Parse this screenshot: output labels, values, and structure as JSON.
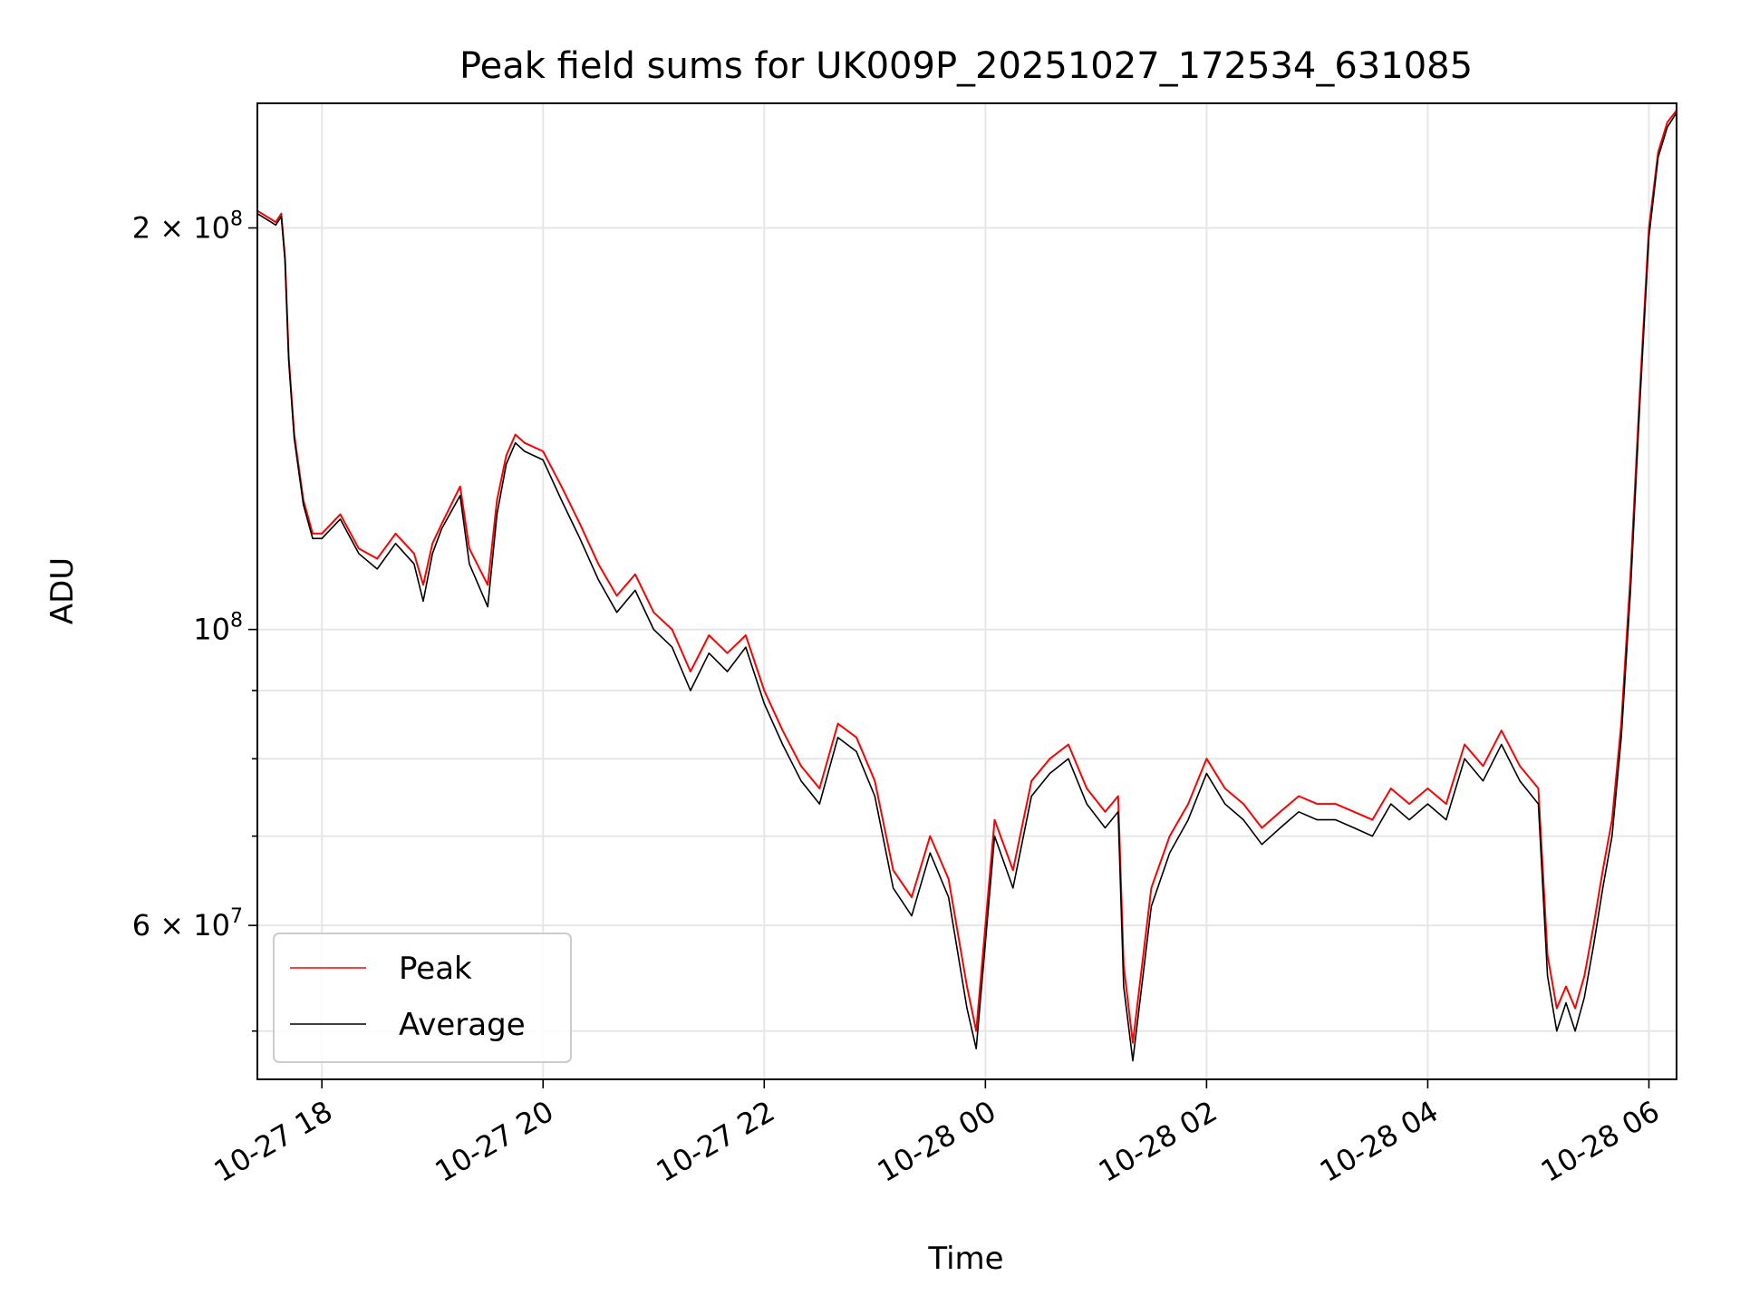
{
  "chart_data": {
    "type": "line",
    "title": "Peak field sums for UK009P_20251027_172534_631085",
    "xlabel": "Time",
    "ylabel": "ADU",
    "y_scale": "log",
    "grid": true,
    "legend_position": "lower-left",
    "xlim": [
      "2025-10-27 17:25",
      "2025-10-28 06:15"
    ],
    "ylim": [
      46000000,
      248000000
    ],
    "x_ticks": [
      {
        "value": "2025-10-27 18:00",
        "label": "10-27 18"
      },
      {
        "value": "2025-10-27 20:00",
        "label": "10-27 20"
      },
      {
        "value": "2025-10-27 22:00",
        "label": "10-27 22"
      },
      {
        "value": "2025-10-28 00:00",
        "label": "10-28 00"
      },
      {
        "value": "2025-10-28 02:00",
        "label": "10-28 02"
      },
      {
        "value": "2025-10-28 04:00",
        "label": "10-28 04"
      },
      {
        "value": "2025-10-28 06:00",
        "label": "10-28 06"
      }
    ],
    "y_ticks": [
      {
        "value": 200000000,
        "base": "2 × 10",
        "exp": "8"
      },
      {
        "value": 100000000,
        "base": "10",
        "exp": "8"
      },
      {
        "value": 60000000,
        "base": "6 × 10",
        "exp": "7"
      }
    ],
    "y_minor_ticks": [
      50000000,
      70000000,
      80000000,
      90000000
    ],
    "series": [
      {
        "name": "Peak",
        "color": "#ff0000",
        "x": [
          "2025-10-27 17:25",
          "2025-10-27 17:35",
          "2025-10-27 17:38",
          "2025-10-27 17:40",
          "2025-10-27 17:42",
          "2025-10-27 17:45",
          "2025-10-27 17:50",
          "2025-10-27 17:55",
          "2025-10-27 18:00",
          "2025-10-27 18:10",
          "2025-10-27 18:20",
          "2025-10-27 18:30",
          "2025-10-27 18:40",
          "2025-10-27 18:50",
          "2025-10-27 18:55",
          "2025-10-27 19:00",
          "2025-10-27 19:05",
          "2025-10-27 19:15",
          "2025-10-27 19:20",
          "2025-10-27 19:30",
          "2025-10-27 19:35",
          "2025-10-27 19:40",
          "2025-10-27 19:45",
          "2025-10-27 19:50",
          "2025-10-27 20:00",
          "2025-10-27 20:10",
          "2025-10-27 20:20",
          "2025-10-27 20:30",
          "2025-10-27 20:40",
          "2025-10-27 20:50",
          "2025-10-27 21:00",
          "2025-10-27 21:10",
          "2025-10-27 21:20",
          "2025-10-27 21:30",
          "2025-10-27 21:40",
          "2025-10-27 21:50",
          "2025-10-27 22:00",
          "2025-10-27 22:10",
          "2025-10-27 22:20",
          "2025-10-27 22:30",
          "2025-10-27 22:40",
          "2025-10-27 22:50",
          "2025-10-27 23:00",
          "2025-10-27 23:10",
          "2025-10-27 23:20",
          "2025-10-27 23:30",
          "2025-10-27 23:40",
          "2025-10-27 23:50",
          "2025-10-27 23:55",
          "2025-10-28 00:05",
          "2025-10-28 00:15",
          "2025-10-28 00:25",
          "2025-10-28 00:35",
          "2025-10-28 00:45",
          "2025-10-28 00:55",
          "2025-10-28 01:05",
          "2025-10-28 01:12",
          "2025-10-28 01:15",
          "2025-10-28 01:20",
          "2025-10-28 01:30",
          "2025-10-28 01:40",
          "2025-10-28 01:50",
          "2025-10-28 02:00",
          "2025-10-28 02:10",
          "2025-10-28 02:20",
          "2025-10-28 02:30",
          "2025-10-28 02:40",
          "2025-10-28 02:50",
          "2025-10-28 03:00",
          "2025-10-28 03:10",
          "2025-10-28 03:20",
          "2025-10-28 03:30",
          "2025-10-28 03:40",
          "2025-10-28 03:50",
          "2025-10-28 04:00",
          "2025-10-28 04:10",
          "2025-10-28 04:20",
          "2025-10-28 04:30",
          "2025-10-28 04:40",
          "2025-10-28 04:50",
          "2025-10-28 05:00",
          "2025-10-28 05:05",
          "2025-10-28 05:10",
          "2025-10-28 05:15",
          "2025-10-28 05:20",
          "2025-10-28 05:25",
          "2025-10-28 05:30",
          "2025-10-28 05:35",
          "2025-10-28 05:40",
          "2025-10-28 05:45",
          "2025-10-28 05:50",
          "2025-10-28 05:55",
          "2025-10-28 06:00",
          "2025-10-28 06:05",
          "2025-10-28 06:10",
          "2025-10-28 06:15"
        ],
        "values": [
          206000000,
          202000000,
          205000000,
          190000000,
          160000000,
          140000000,
          125000000,
          118000000,
          118000000,
          122000000,
          115000000,
          113000000,
          118000000,
          114000000,
          108000000,
          116000000,
          120000000,
          128000000,
          115000000,
          108000000,
          125000000,
          135000000,
          140000000,
          138000000,
          136000000,
          128000000,
          120000000,
          112000000,
          106000000,
          110000000,
          103000000,
          100000000,
          93000000,
          99000000,
          96000000,
          99000000,
          90000000,
          84000000,
          79000000,
          76000000,
          85000000,
          83000000,
          77000000,
          66000000,
          63000000,
          70000000,
          65000000,
          54000000,
          50000000,
          72000000,
          66000000,
          77000000,
          80000000,
          82000000,
          76000000,
          73000000,
          75000000,
          56000000,
          49000000,
          64000000,
          70000000,
          74000000,
          80000000,
          76000000,
          74000000,
          71000000,
          73000000,
          75000000,
          74000000,
          74000000,
          73000000,
          72000000,
          76000000,
          74000000,
          76000000,
          74000000,
          82000000,
          79000000,
          84000000,
          79000000,
          76000000,
          57000000,
          52000000,
          54000000,
          52000000,
          55000000,
          60000000,
          66000000,
          72000000,
          85000000,
          110000000,
          150000000,
          200000000,
          228000000,
          240000000,
          245000000
        ]
      },
      {
        "name": "Average",
        "color": "#000000",
        "x": [
          "2025-10-27 17:25",
          "2025-10-27 17:35",
          "2025-10-27 17:38",
          "2025-10-27 17:40",
          "2025-10-27 17:42",
          "2025-10-27 17:45",
          "2025-10-27 17:50",
          "2025-10-27 17:55",
          "2025-10-27 18:00",
          "2025-10-27 18:10",
          "2025-10-27 18:20",
          "2025-10-27 18:30",
          "2025-10-27 18:40",
          "2025-10-27 18:50",
          "2025-10-27 18:55",
          "2025-10-27 19:00",
          "2025-10-27 19:05",
          "2025-10-27 19:15",
          "2025-10-27 19:20",
          "2025-10-27 19:30",
          "2025-10-27 19:35",
          "2025-10-27 19:40",
          "2025-10-27 19:45",
          "2025-10-27 19:50",
          "2025-10-27 20:00",
          "2025-10-27 20:10",
          "2025-10-27 20:20",
          "2025-10-27 20:30",
          "2025-10-27 20:40",
          "2025-10-27 20:50",
          "2025-10-27 21:00",
          "2025-10-27 21:10",
          "2025-10-27 21:20",
          "2025-10-27 21:30",
          "2025-10-27 21:40",
          "2025-10-27 21:50",
          "2025-10-27 22:00",
          "2025-10-27 22:10",
          "2025-10-27 22:20",
          "2025-10-27 22:30",
          "2025-10-27 22:40",
          "2025-10-27 22:50",
          "2025-10-27 23:00",
          "2025-10-27 23:10",
          "2025-10-27 23:20",
          "2025-10-27 23:30",
          "2025-10-27 23:40",
          "2025-10-27 23:50",
          "2025-10-27 23:55",
          "2025-10-28 00:05",
          "2025-10-28 00:15",
          "2025-10-28 00:25",
          "2025-10-28 00:35",
          "2025-10-28 00:45",
          "2025-10-28 00:55",
          "2025-10-28 01:05",
          "2025-10-28 01:12",
          "2025-10-28 01:15",
          "2025-10-28 01:20",
          "2025-10-28 01:30",
          "2025-10-28 01:40",
          "2025-10-28 01:50",
          "2025-10-28 02:00",
          "2025-10-28 02:10",
          "2025-10-28 02:20",
          "2025-10-28 02:30",
          "2025-10-28 02:40",
          "2025-10-28 02:50",
          "2025-10-28 03:00",
          "2025-10-28 03:10",
          "2025-10-28 03:20",
          "2025-10-28 03:30",
          "2025-10-28 03:40",
          "2025-10-28 03:50",
          "2025-10-28 04:00",
          "2025-10-28 04:10",
          "2025-10-28 04:20",
          "2025-10-28 04:30",
          "2025-10-28 04:40",
          "2025-10-28 04:50",
          "2025-10-28 05:00",
          "2025-10-28 05:05",
          "2025-10-28 05:10",
          "2025-10-28 05:15",
          "2025-10-28 05:20",
          "2025-10-28 05:25",
          "2025-10-28 05:30",
          "2025-10-28 05:35",
          "2025-10-28 05:40",
          "2025-10-28 05:45",
          "2025-10-28 05:50",
          "2025-10-28 05:55",
          "2025-10-28 06:00",
          "2025-10-28 06:05",
          "2025-10-28 06:10",
          "2025-10-28 06:15"
        ],
        "values": [
          205000000,
          201000000,
          204000000,
          189000000,
          159000000,
          139000000,
          124000000,
          117000000,
          117000000,
          121000000,
          114000000,
          111000000,
          116000000,
          112000000,
          105000000,
          114000000,
          119000000,
          126000000,
          112000000,
          104000000,
          122000000,
          133000000,
          138000000,
          136000000,
          134000000,
          125000000,
          117000000,
          109000000,
          103000000,
          107000000,
          100000000,
          97000000,
          90000000,
          96000000,
          93000000,
          97000000,
          88000000,
          82000000,
          77000000,
          74000000,
          83000000,
          81000000,
          75000000,
          64000000,
          61000000,
          68000000,
          63000000,
          52000000,
          48500000,
          70000000,
          64000000,
          75000000,
          78000000,
          80000000,
          74000000,
          71000000,
          73000000,
          54000000,
          47500000,
          62000000,
          68000000,
          72000000,
          78000000,
          74000000,
          72000000,
          69000000,
          71000000,
          73000000,
          72000000,
          72000000,
          71000000,
          70000000,
          74000000,
          72000000,
          74000000,
          72000000,
          80000000,
          77000000,
          82000000,
          77000000,
          74000000,
          55000000,
          50000000,
          52500000,
          50000000,
          53000000,
          58000000,
          64000000,
          70000000,
          83000000,
          107000000,
          147000000,
          197000000,
          226000000,
          238000000,
          244000000
        ]
      }
    ]
  }
}
